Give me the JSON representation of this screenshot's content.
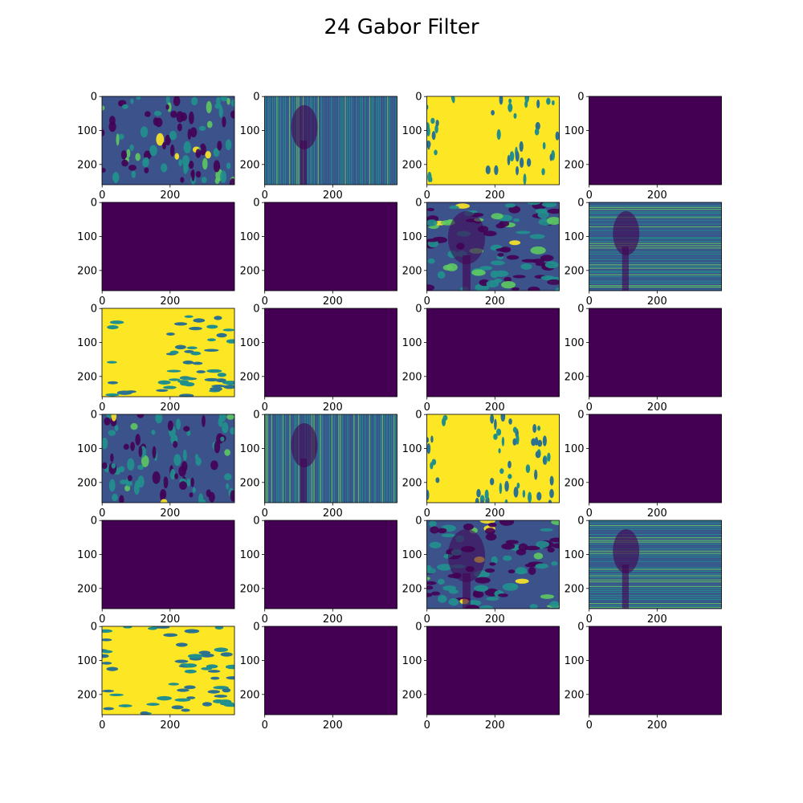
{
  "figure": {
    "title": "24 Gabor Filter"
  },
  "chart_data": {
    "type": "heatmap",
    "title": "24 Gabor Filter",
    "rows": 6,
    "cols": 4,
    "image_width": 390,
    "image_height": 260,
    "colormap": "viridis",
    "colors": {
      "dark": "#440154",
      "mid": "#21908d",
      "bright": "#fde725"
    },
    "x_ticks": [
      0,
      200
    ],
    "y_ticks": [
      0,
      100,
      200
    ],
    "x_tick_labels": [
      "0",
      "200"
    ],
    "y_tick_labels": [
      "0",
      "100",
      "200"
    ],
    "panels": [
      {
        "index": 1,
        "pattern": "blobs-mixed"
      },
      {
        "index": 2,
        "pattern": "vertical-stripes"
      },
      {
        "index": 3,
        "pattern": "bright-blob"
      },
      {
        "index": 4,
        "pattern": "uniform-dark"
      },
      {
        "index": 5,
        "pattern": "uniform-dark"
      },
      {
        "index": 6,
        "pattern": "uniform-dark"
      },
      {
        "index": 7,
        "pattern": "cells-mixed"
      },
      {
        "index": 8,
        "pattern": "horizontal-stripes"
      },
      {
        "index": 9,
        "pattern": "bright-blob-horizontal"
      },
      {
        "index": 10,
        "pattern": "uniform-dark"
      },
      {
        "index": 11,
        "pattern": "uniform-dark"
      },
      {
        "index": 12,
        "pattern": "uniform-dark"
      },
      {
        "index": 13,
        "pattern": "blobs-mixed"
      },
      {
        "index": 14,
        "pattern": "vertical-stripes"
      },
      {
        "index": 15,
        "pattern": "bright-blob"
      },
      {
        "index": 16,
        "pattern": "uniform-dark"
      },
      {
        "index": 17,
        "pattern": "uniform-dark"
      },
      {
        "index": 18,
        "pattern": "uniform-dark"
      },
      {
        "index": 19,
        "pattern": "cells-mixed"
      },
      {
        "index": 20,
        "pattern": "horizontal-stripes"
      },
      {
        "index": 21,
        "pattern": "bright-blob-horizontal"
      },
      {
        "index": 22,
        "pattern": "uniform-dark"
      },
      {
        "index": 23,
        "pattern": "uniform-dark"
      },
      {
        "index": 24,
        "pattern": "uniform-dark"
      }
    ]
  }
}
